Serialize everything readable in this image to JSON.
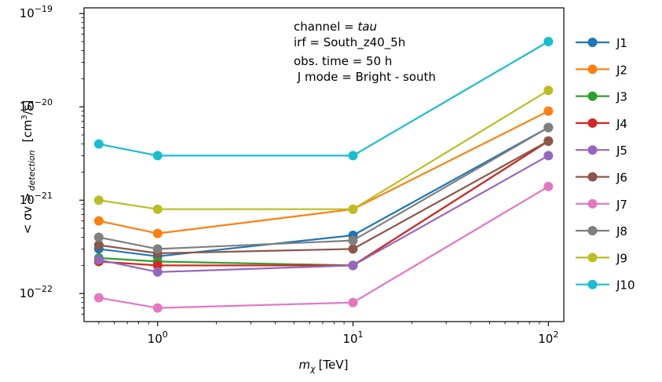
{
  "chart_data": {
    "type": "line",
    "xscale": "log",
    "yscale": "log",
    "xlim": [
      0.42,
      120
    ],
    "ylim": [
      5e-23,
      1.15e-19
    ],
    "xticks": [
      {
        "value": 1,
        "base": "10",
        "exp": "0"
      },
      {
        "value": 10,
        "base": "10",
        "exp": "1"
      },
      {
        "value": 100,
        "base": "10",
        "exp": "2"
      }
    ],
    "yticks": [
      {
        "value": 1e-22,
        "base": "10",
        "exp": "−22"
      },
      {
        "value": 1e-21,
        "base": "10",
        "exp": "−21"
      },
      {
        "value": 1e-20,
        "base": "10",
        "exp": "−20"
      },
      {
        "value": 1e-19,
        "base": "10",
        "exp": "−19"
      }
    ],
    "xlabel": {
      "symbol": "m",
      "sub": "χ",
      "unit": "[TeV]"
    },
    "ylabel": {
      "main": "< σv >",
      "sub": "detection",
      "unit": "[cm",
      "unit_sup": "3",
      "unit_end": "/s]"
    },
    "annotations": [
      {
        "prefix": "channel = ",
        "italic": "tau"
      },
      {
        "prefix": "irf = South_z40_5h",
        "italic": ""
      },
      {
        "prefix": "obs. time = 50 h",
        "italic": ""
      },
      {
        "prefix": " J mode = Bright - south",
        "italic": ""
      }
    ],
    "legend_position": "outside-right",
    "x": [
      0.5,
      1,
      10,
      100
    ],
    "series": [
      {
        "name": "J1",
        "color": "#1f77b4",
        "values": [
          3e-22,
          2.5e-22,
          4.2e-22,
          6e-21
        ]
      },
      {
        "name": "J2",
        "color": "#ff7f0e",
        "values": [
          6e-22,
          4.4e-22,
          8e-22,
          9e-21
        ]
      },
      {
        "name": "J3",
        "color": "#2ca02c",
        "values": [
          2.4e-22,
          2.2e-22,
          2e-22,
          4.3e-21
        ]
      },
      {
        "name": "J4",
        "color": "#d62728",
        "values": [
          2.2e-22,
          2e-22,
          2e-22,
          4.3e-21
        ]
      },
      {
        "name": "J5",
        "color": "#9467bd",
        "values": [
          2.3e-22,
          1.7e-22,
          2e-22,
          3e-21
        ]
      },
      {
        "name": "J6",
        "color": "#8c564b",
        "values": [
          3.3e-22,
          2.7e-22,
          3e-22,
          4.3e-21
        ]
      },
      {
        "name": "J7",
        "color": "#e377c2",
        "values": [
          9e-23,
          7e-23,
          8e-23,
          1.4e-21
        ]
      },
      {
        "name": "J8",
        "color": "#7f7f7f",
        "values": [
          4e-22,
          3e-22,
          3.7e-22,
          6e-21
        ]
      },
      {
        "name": "J9",
        "color": "#bcbd22",
        "values": [
          1e-21,
          8e-22,
          8e-22,
          1.5e-20
        ]
      },
      {
        "name": "J10",
        "color": "#17becf",
        "values": [
          4e-21,
          3e-21,
          3e-21,
          5e-20
        ]
      }
    ]
  }
}
